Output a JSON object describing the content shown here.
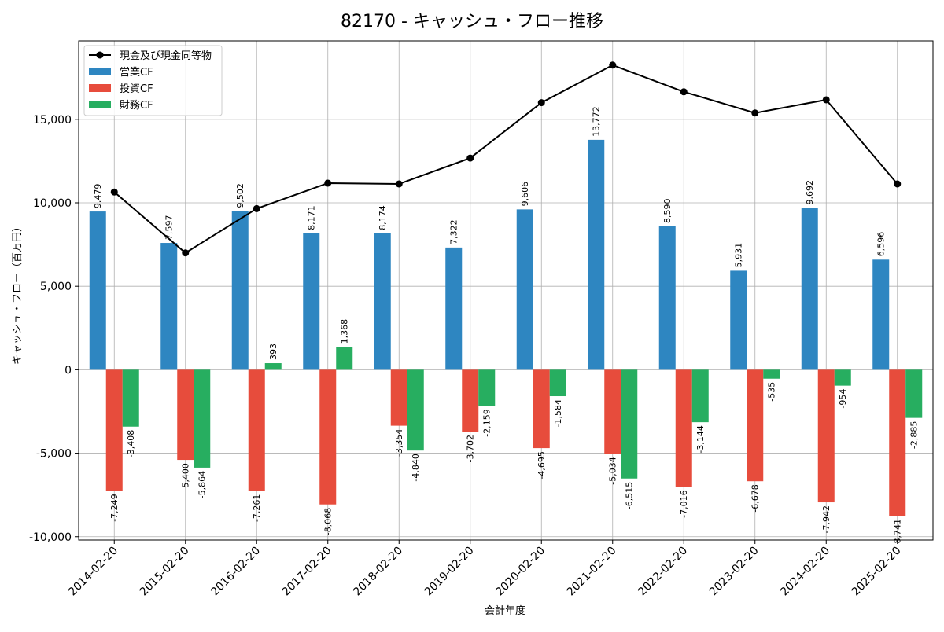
{
  "chart_data": {
    "type": "bar",
    "title": "82170 - キャッシュ・フロー推移",
    "xlabel": "会計年度",
    "ylabel": "キャッシュ・フロー（百万円）",
    "ylim": [
      -10200,
      19700
    ],
    "yticks": [
      -10000,
      -5000,
      0,
      5000,
      10000,
      15000
    ],
    "ytick_labels": [
      "-10,000",
      "-5,000",
      "0",
      "5,000",
      "10,000",
      "15,000"
    ],
    "grid": true,
    "legend_position": "top-left",
    "categories": [
      "2014-02-20",
      "2015-02-20",
      "2016-02-20",
      "2017-02-20",
      "2018-02-20",
      "2019-02-20",
      "2020-02-20",
      "2021-02-20",
      "2022-02-20",
      "2023-02-20",
      "2024-02-20",
      "2025-02-20"
    ],
    "series": [
      {
        "name": "営業CF",
        "kind": "bar",
        "color": "#2e86c1",
        "values": [
          9479,
          7597,
          9502,
          8171,
          8174,
          7322,
          9606,
          13772,
          8590,
          5931,
          9692,
          6596
        ],
        "labels": [
          "9,479",
          "7,597",
          "9,502",
          "8,171",
          "8,174",
          "7,322",
          "9,606",
          "13,772",
          "8,590",
          "5,931",
          "9,692",
          "6,596"
        ]
      },
      {
        "name": "投資CF",
        "kind": "bar",
        "color": "#e74c3c",
        "values": [
          -7249,
          -5400,
          -7261,
          -8068,
          -3354,
          -3702,
          -4695,
          -5034,
          -7016,
          -6678,
          -7942,
          -8741
        ],
        "labels": [
          "-7,249",
          "-5,400",
          "-7,261",
          "-8,068",
          "-3,354",
          "-3,702",
          "-4,695",
          "-5,034",
          "-7,016",
          "-6,678",
          "-7,942",
          "-8,741"
        ]
      },
      {
        "name": "財務CF",
        "kind": "bar",
        "color": "#27ae60",
        "values": [
          -3408,
          -5864,
          393,
          1368,
          -4840,
          -2159,
          -1584,
          -6515,
          -3144,
          -535,
          -954,
          -2885
        ],
        "labels": [
          "-3,408",
          "-5,864",
          "393",
          "1,368",
          "-4,840",
          "-2,159",
          "-1,584",
          "-6,515",
          "-3,144",
          "-535",
          "-954",
          "-2,885"
        ]
      },
      {
        "name": "現金及び現金同等物",
        "kind": "line",
        "color": "#000000",
        "values": [
          10650,
          7000,
          9650,
          11180,
          11130,
          12680,
          16000,
          18250,
          16650,
          15380,
          16170,
          11130
        ]
      }
    ]
  }
}
